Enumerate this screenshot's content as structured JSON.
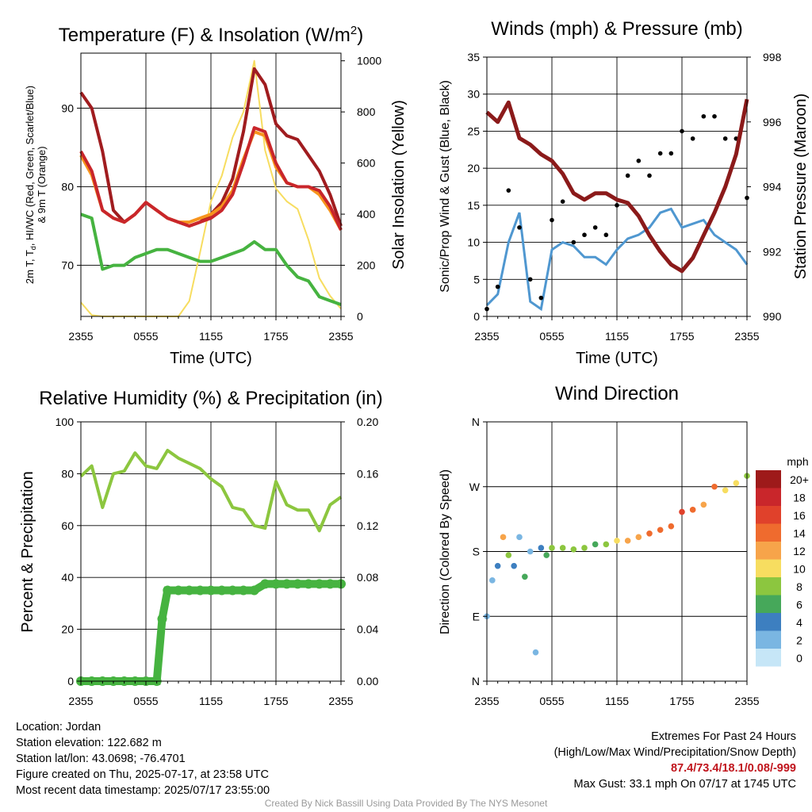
{
  "x_ticks": [
    "2355",
    "0555",
    "1155",
    "1755",
    "2355"
  ],
  "chart_data": [
    {
      "id": "temperature",
      "type": "line",
      "title": "Temperature (F) & Insolation (W/m²)",
      "title_main": "Temperature (F) & Insolation (W/m",
      "title_sup": "2",
      "title_end": ")",
      "xlabel": "Time (UTC)",
      "ylabel_line1": "2m T, T",
      "ylabel_sub": "d",
      "ylabel_line1_end": ", HI/WC (Red, Green, Scarlet/Blue)",
      "ylabel_line2": "& 9m T (Orange)",
      "y2label": "Solar Insolation (Yellow)",
      "y_ticks": [
        "70",
        "80",
        "90"
      ],
      "y2_ticks": [
        "0",
        "200",
        "400",
        "600",
        "800",
        "1000"
      ],
      "ylim": [
        63.5,
        97
      ],
      "y2lim": [
        0,
        1030
      ],
      "grid": true,
      "colors": {
        "temp": "#c9262b",
        "dewpoint": "#46b340",
        "heat_index": "#a01c1f",
        "temp_9m": "#f7941d",
        "insolation": "#f7dd60"
      },
      "series": [
        {
          "key": "temp",
          "x": [
            0,
            1,
            2,
            3,
            4,
            5,
            6,
            7,
            8,
            9,
            10,
            11,
            12,
            13,
            14,
            15,
            16,
            17,
            18,
            19,
            20,
            21,
            22,
            23,
            24
          ],
          "values": [
            84.5,
            82,
            77,
            76,
            75.5,
            76.5,
            78,
            77,
            76,
            75.5,
            75,
            75.5,
            76,
            77,
            79,
            83,
            87.5,
            87,
            83,
            80.5,
            80,
            80,
            79.5,
            77.5,
            74.5
          ]
        },
        {
          "key": "dewpoint",
          "x": [
            0,
            1,
            2,
            3,
            4,
            5,
            6,
            7,
            8,
            9,
            10,
            11,
            12,
            13,
            14,
            15,
            16,
            17,
            18,
            19,
            20,
            21,
            22,
            23,
            24
          ],
          "values": [
            76.5,
            76,
            69.5,
            70,
            70,
            71,
            71.5,
            72,
            72,
            71.5,
            71,
            70.5,
            70.5,
            71,
            71.5,
            72,
            73,
            72,
            72,
            70,
            68.5,
            68,
            66,
            65.5,
            65
          ]
        },
        {
          "key": "heat_index",
          "x": [
            0,
            1,
            2,
            3,
            4,
            5,
            6,
            7,
            8,
            9,
            10,
            11,
            12,
            13,
            14,
            15,
            16,
            17,
            18,
            19,
            20,
            21,
            22,
            23,
            24
          ],
          "values": [
            92,
            90,
            84.5,
            77,
            75.5,
            76.5,
            78,
            77,
            76,
            75.5,
            75,
            75.5,
            76.5,
            78,
            81,
            87,
            95,
            93,
            88,
            86.5,
            86,
            84,
            82,
            79,
            75
          ]
        },
        {
          "key": "temp_9m",
          "x": [
            0,
            1,
            2,
            3,
            4,
            5,
            6,
            7,
            8,
            9,
            10,
            11,
            12,
            13,
            14,
            15,
            16,
            17,
            18,
            19,
            20,
            21,
            22,
            23,
            24
          ],
          "values": [
            84,
            81.5,
            77,
            76,
            75.5,
            76.5,
            78,
            77,
            76,
            75.5,
            75.5,
            76,
            76.5,
            77.5,
            79.5,
            83.5,
            87,
            86.5,
            82.5,
            80.5,
            80,
            80,
            79,
            77,
            74.5
          ]
        },
        {
          "key": "insolation",
          "x": [
            0,
            1,
            2,
            3,
            4,
            5,
            6,
            7,
            8,
            9,
            10,
            11,
            12,
            13,
            14,
            15,
            16,
            17,
            18,
            19,
            20,
            21,
            22,
            23,
            24
          ],
          "values": [
            55,
            5,
            0,
            0,
            0,
            0,
            0,
            0,
            0,
            0,
            60,
            250,
            450,
            550,
            700,
            800,
            1000,
            650,
            500,
            450,
            420,
            300,
            150,
            80,
            30
          ]
        }
      ]
    },
    {
      "id": "winds",
      "type": "line",
      "title": "Winds (mph) & Pressure (mb)",
      "xlabel": "Time (UTC)",
      "ylabel": "Sonic/Prop Wind & Gust (Blue, Black)",
      "y2label": "Station Pressure (Maroon)",
      "y_ticks": [
        "0",
        "5",
        "10",
        "15",
        "20",
        "25",
        "30",
        "35"
      ],
      "y2_ticks": [
        "990",
        "992",
        "994",
        "996",
        "998"
      ],
      "ylim": [
        0,
        35
      ],
      "y2lim": [
        990,
        998
      ],
      "grid": true,
      "colors": {
        "wind": "#4f97d0",
        "gust": "#000000",
        "pressure": "#8b1a1a"
      },
      "series": [
        {
          "key": "wind",
          "x": [
            0,
            1,
            2,
            3,
            4,
            5,
            6,
            7,
            8,
            9,
            10,
            11,
            12,
            13,
            14,
            15,
            16,
            17,
            18,
            19,
            20,
            21,
            22,
            23,
            24
          ],
          "values": [
            1.5,
            3,
            10,
            14,
            2,
            1,
            9,
            10,
            9.5,
            8,
            8,
            7,
            9,
            10.5,
            11,
            12,
            14,
            14.5,
            12,
            12.5,
            13,
            11,
            10,
            9,
            7
          ]
        },
        {
          "key": "gust",
          "x": [
            0,
            1,
            2,
            3,
            4,
            5,
            6,
            7,
            8,
            9,
            10,
            11,
            12,
            13,
            14,
            15,
            16,
            17,
            18,
            19,
            20,
            21,
            22,
            23,
            24
          ],
          "values": [
            1,
            4,
            17,
            12,
            5,
            2.5,
            13,
            15.5,
            10,
            11,
            12,
            11,
            15,
            19,
            21,
            19,
            22,
            22,
            25,
            24,
            27,
            27,
            24,
            24,
            16
          ]
        },
        {
          "key": "pressure",
          "x": [
            0,
            1,
            2,
            3,
            4,
            5,
            6,
            7,
            8,
            9,
            10,
            11,
            12,
            13,
            14,
            15,
            16,
            17,
            18,
            19,
            20,
            21,
            22,
            23,
            24
          ],
          "values": [
            996.3,
            996,
            996.6,
            995.5,
            995.3,
            995,
            994.8,
            994.4,
            993.8,
            993.6,
            993.8,
            993.8,
            993.6,
            993.5,
            993.1,
            992.5,
            992,
            991.6,
            991.4,
            991.8,
            992.5,
            993.2,
            994,
            995,
            996.7
          ]
        }
      ]
    },
    {
      "id": "humidity",
      "type": "line",
      "title": "Relative Humidity (%) & Precipitation (in)",
      "ylabel": "Percent & Precipitation",
      "y_ticks": [
        "0",
        "20",
        "40",
        "60",
        "80",
        "100"
      ],
      "y2_ticks": [
        "0.00",
        "0.04",
        "0.08",
        "0.12",
        "0.16",
        "0.20"
      ],
      "ylim": [
        0,
        100
      ],
      "y2lim": [
        0,
        0.2
      ],
      "grid": true,
      "colors": {
        "rh": "#8cc63f",
        "precip": "#46b340"
      },
      "series": [
        {
          "key": "rh",
          "x": [
            0,
            1,
            2,
            3,
            4,
            5,
            6,
            7,
            8,
            9,
            10,
            11,
            12,
            13,
            14,
            15,
            16,
            17,
            18,
            19,
            20,
            21,
            22,
            23,
            24
          ],
          "values": [
            79,
            83,
            67,
            80,
            81,
            88,
            83,
            82,
            89,
            86,
            84,
            82,
            78,
            75,
            67,
            66,
            60,
            59,
            77,
            68,
            66,
            66,
            58,
            68,
            71
          ]
        },
        {
          "key": "precip",
          "x": [
            0,
            1,
            2,
            3,
            4,
            5,
            6,
            7,
            7.5,
            8,
            9,
            10,
            11,
            12,
            13,
            14,
            15,
            16,
            17,
            18,
            19,
            20,
            21,
            22,
            23,
            24
          ],
          "values": [
            0,
            0,
            0,
            0,
            0,
            0,
            0,
            0,
            0.048,
            0.07,
            0.07,
            0.07,
            0.07,
            0.07,
            0.07,
            0.07,
            0.07,
            0.07,
            0.075,
            0.075,
            0.075,
            0.075,
            0.075,
            0.075,
            0.075,
            0.075
          ]
        }
      ]
    },
    {
      "id": "wind_direction",
      "type": "scatter",
      "title": "Wind Direction",
      "ylabel": "Direction (Colored By Speed)",
      "y_ticks": [
        "N",
        "E",
        "S",
        "W",
        "N"
      ],
      "ylim": [
        0,
        360
      ],
      "grid": true,
      "legend_title": "mph",
      "legend_labels": [
        "20+",
        "18",
        "16",
        "14",
        "12",
        "10",
        "8",
        "6",
        "4",
        "2",
        "0"
      ],
      "legend_colors": [
        "#9e1a1a",
        "#c9262b",
        "#e0412b",
        "#ef6b2e",
        "#f7a44a",
        "#f7dd60",
        "#8cc63f",
        "#46a85a",
        "#3d7fc0",
        "#7ab6e2",
        "#c6e6f7"
      ],
      "series": [
        {
          "key": "direction",
          "x": [
            0,
            0.5,
            1,
            1.5,
            2,
            2.5,
            3,
            3.5,
            4,
            4.5,
            5,
            5.5,
            6,
            7,
            8,
            9,
            10,
            11,
            12,
            13,
            14,
            15,
            16,
            17,
            18,
            19,
            20,
            21,
            22,
            23,
            24
          ],
          "values": [
            90,
            140,
            160,
            200,
            175,
            160,
            200,
            145,
            180,
            40,
            185,
            175,
            185,
            185,
            183,
            185,
            190,
            190,
            195,
            195,
            200,
            205,
            210,
            215,
            235,
            238,
            245,
            270,
            265,
            275,
            285
          ],
          "speeds": [
            1,
            2,
            3,
            12,
            7,
            3,
            2,
            5,
            2,
            2,
            4,
            6,
            7,
            7,
            8,
            7,
            6,
            8,
            10,
            12,
            11,
            14,
            13,
            14,
            15,
            13,
            12,
            13,
            10,
            9,
            8
          ]
        }
      ]
    }
  ],
  "info": {
    "location": "Location: Jordan",
    "elevation": "Station elevation: 122.682 m",
    "latlon": "Station lat/lon: 43.0698; -76.4701",
    "created": "Figure created on Thu, 2025-07-17, at 23:58 UTC",
    "recent": "Most recent data timestamp: 2025/07/17 23:55:00"
  },
  "extremes": {
    "heading": "Extremes For Past 24 Hours",
    "subheading": "(High/Low/Max Wind/Precipitation/Snow Depth)",
    "values": "87.4/73.4/18.1/0.08/-999",
    "max_gust": "Max Gust: 33.1 mph On 07/17 at 1745 UTC"
  },
  "credit": "Created By Nick Bassill Using Data Provided By The NYS Mesonet"
}
